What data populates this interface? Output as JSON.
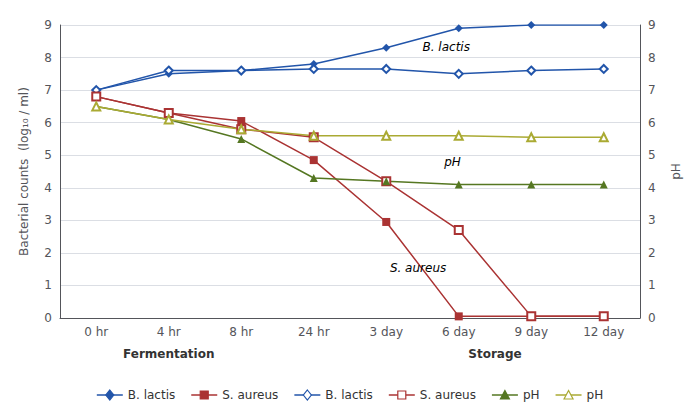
{
  "chart_data": {
    "type": "line",
    "categories": [
      "0 hr",
      "4 hr",
      "8 hr",
      "24 hr",
      "3 day",
      "6 day",
      "9 day",
      "12 day"
    ],
    "series": [
      {
        "name": "B. lactis",
        "color": "#2255aa",
        "marker": "diamond",
        "values": [
          7.0,
          7.5,
          7.6,
          7.8,
          8.3,
          8.9,
          9.0,
          9.0
        ]
      },
      {
        "name": "S. aureus",
        "color": "#aa3333",
        "marker": "square",
        "values": [
          6.8,
          6.3,
          6.05,
          4.85,
          2.95,
          0.05,
          0.05,
          0.05
        ]
      },
      {
        "name": "B. lactis",
        "color": "#2255aa",
        "marker": "open-diamond",
        "values": [
          7.0,
          7.6,
          7.6,
          7.65,
          7.65,
          7.5,
          7.6,
          7.65
        ]
      },
      {
        "name": "S. aureus",
        "color": "#aa3333",
        "marker": "open-square",
        "values": [
          6.8,
          6.3,
          5.8,
          5.55,
          4.2,
          2.7,
          0.05,
          0.05
        ]
      },
      {
        "name": "pH",
        "color": "#557722",
        "marker": "triangle",
        "axis": "y2",
        "values": [
          6.5,
          6.1,
          5.5,
          4.3,
          4.2,
          4.1,
          4.1,
          4.1
        ]
      },
      {
        "name": "pH",
        "color": "#aaaa33",
        "marker": "open-triangle",
        "axis": "y2",
        "values": [
          6.5,
          6.1,
          5.8,
          5.6,
          5.6,
          5.6,
          5.55,
          5.55
        ]
      }
    ],
    "ylabel": "Bacterial counts  (log₁₀ / ml)",
    "y2label": "pH",
    "ylim": [
      0,
      9
    ],
    "yticks": [
      0,
      1,
      2,
      3,
      4,
      5,
      6,
      7,
      8,
      9
    ],
    "y2lim": [
      0,
      9
    ],
    "y2ticks": [
      0,
      1,
      2,
      3,
      4,
      5,
      6,
      7,
      8,
      9
    ],
    "grid": true,
    "legend": "bottom",
    "annotations": [
      {
        "text": "B. lactis",
        "x": 4.5,
        "y": 8.15
      },
      {
        "text": "S. aureus",
        "x": 4.05,
        "y": 1.35
      },
      {
        "text": "pH",
        "x": 4.8,
        "y": 4.6
      }
    ],
    "sections": [
      "Fermentation",
      "Storage"
    ]
  }
}
